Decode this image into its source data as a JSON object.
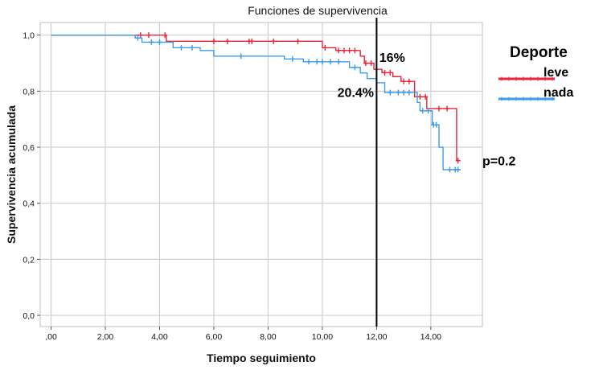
{
  "chart_data": {
    "type": "line",
    "step": true,
    "title": "Funciones de supervivencia",
    "xlabel": "Tiempo seguimiento",
    "ylabel": "Supervivencia acumulada",
    "xlim": [
      -0.4,
      15.9
    ],
    "ylim": [
      -0.04,
      1.045
    ],
    "x_ticks": [
      0,
      2,
      4,
      6,
      8,
      10,
      12,
      14
    ],
    "x_tick_labels": [
      ",00",
      "2,00",
      "4,00",
      "6,00",
      "8,00",
      "10,00",
      "12,00",
      "14,00"
    ],
    "y_ticks": [
      0,
      0.2,
      0.4,
      0.6,
      0.8,
      1.0
    ],
    "y_tick_labels": [
      "0,0",
      "0,2",
      "0,4",
      "0,6",
      "0,8",
      "1,0"
    ],
    "grid": true,
    "legend": {
      "title": "Deporte",
      "position": "right"
    },
    "series": [
      {
        "name": "leve",
        "color": "#e8243a",
        "steps": [
          [
            0,
            1.0
          ],
          [
            4.25,
            1.0
          ],
          [
            4.25,
            0.978
          ],
          [
            10.0,
            0.978
          ],
          [
            10.0,
            0.955
          ],
          [
            10.5,
            0.955
          ],
          [
            10.5,
            0.945
          ],
          [
            11.4,
            0.945
          ],
          [
            11.4,
            0.925
          ],
          [
            11.55,
            0.925
          ],
          [
            11.55,
            0.9
          ],
          [
            11.9,
            0.9
          ],
          [
            11.9,
            0.878
          ],
          [
            12.2,
            0.878
          ],
          [
            12.2,
            0.866
          ],
          [
            12.6,
            0.866
          ],
          [
            12.6,
            0.852
          ],
          [
            12.9,
            0.852
          ],
          [
            12.9,
            0.835
          ],
          [
            13.4,
            0.835
          ],
          [
            13.4,
            0.78
          ],
          [
            13.85,
            0.78
          ],
          [
            13.85,
            0.738
          ],
          [
            14.95,
            0.738
          ],
          [
            14.95,
            0.552
          ],
          [
            15.05,
            0.552
          ]
        ],
        "censored": [
          [
            3.3,
            1.0
          ],
          [
            3.6,
            1.0
          ],
          [
            4.2,
            1.0
          ],
          [
            6.0,
            0.978
          ],
          [
            6.5,
            0.978
          ],
          [
            7.3,
            0.978
          ],
          [
            7.4,
            0.978
          ],
          [
            8.2,
            0.978
          ],
          [
            9.1,
            0.978
          ],
          [
            10.1,
            0.955
          ],
          [
            10.6,
            0.945
          ],
          [
            10.8,
            0.945
          ],
          [
            11.0,
            0.945
          ],
          [
            11.2,
            0.945
          ],
          [
            11.6,
            0.9
          ],
          [
            11.8,
            0.9
          ],
          [
            12.3,
            0.866
          ],
          [
            12.5,
            0.866
          ],
          [
            13.0,
            0.835
          ],
          [
            13.2,
            0.835
          ],
          [
            13.6,
            0.78
          ],
          [
            13.8,
            0.78
          ],
          [
            14.3,
            0.738
          ],
          [
            14.6,
            0.738
          ],
          [
            15.0,
            0.552
          ]
        ]
      },
      {
        "name": "nada",
        "color": "#3d9be8",
        "steps": [
          [
            0,
            1.0
          ],
          [
            3.1,
            1.0
          ],
          [
            3.1,
            0.99
          ],
          [
            3.35,
            0.99
          ],
          [
            3.35,
            0.975
          ],
          [
            4.5,
            0.975
          ],
          [
            4.5,
            0.955
          ],
          [
            5.5,
            0.955
          ],
          [
            5.5,
            0.945
          ],
          [
            6.0,
            0.945
          ],
          [
            6.0,
            0.925
          ],
          [
            8.6,
            0.925
          ],
          [
            8.6,
            0.915
          ],
          [
            9.3,
            0.915
          ],
          [
            9.3,
            0.905
          ],
          [
            11.0,
            0.905
          ],
          [
            11.0,
            0.885
          ],
          [
            11.4,
            0.885
          ],
          [
            11.4,
            0.865
          ],
          [
            11.65,
            0.865
          ],
          [
            11.65,
            0.845
          ],
          [
            12.0,
            0.845
          ],
          [
            12.0,
            0.83
          ],
          [
            12.3,
            0.83
          ],
          [
            12.3,
            0.795
          ],
          [
            13.5,
            0.795
          ],
          [
            13.5,
            0.76
          ],
          [
            13.6,
            0.76
          ],
          [
            13.6,
            0.73
          ],
          [
            14.05,
            0.73
          ],
          [
            14.05,
            0.68
          ],
          [
            14.3,
            0.68
          ],
          [
            14.3,
            0.6
          ],
          [
            14.45,
            0.6
          ],
          [
            14.45,
            0.52
          ],
          [
            15.1,
            0.52
          ]
        ],
        "censored": [
          [
            3.2,
            0.99
          ],
          [
            3.7,
            0.975
          ],
          [
            4.0,
            0.975
          ],
          [
            4.8,
            0.955
          ],
          [
            5.2,
            0.955
          ],
          [
            7.0,
            0.925
          ],
          [
            8.9,
            0.915
          ],
          [
            9.5,
            0.905
          ],
          [
            9.8,
            0.905
          ],
          [
            10.0,
            0.905
          ],
          [
            10.3,
            0.905
          ],
          [
            10.6,
            0.905
          ],
          [
            11.2,
            0.885
          ],
          [
            12.5,
            0.795
          ],
          [
            12.8,
            0.795
          ],
          [
            13.0,
            0.795
          ],
          [
            13.2,
            0.795
          ],
          [
            13.7,
            0.73
          ],
          [
            13.9,
            0.73
          ],
          [
            14.1,
            0.68
          ],
          [
            14.2,
            0.68
          ],
          [
            14.7,
            0.52
          ],
          [
            14.9,
            0.52
          ],
          [
            15.0,
            0.52
          ]
        ]
      }
    ],
    "vline": {
      "x": 12.0,
      "color": "#000000"
    },
    "annotations": [
      {
        "text": "16%",
        "x": 12.1,
        "y": 0.905,
        "anchor": "start"
      },
      {
        "text": "20.4%",
        "x": 11.9,
        "y": 0.78,
        "anchor": "end"
      },
      {
        "text": "p=0.2",
        "x": 15.9,
        "y": 0.535,
        "anchor": "start"
      }
    ]
  }
}
